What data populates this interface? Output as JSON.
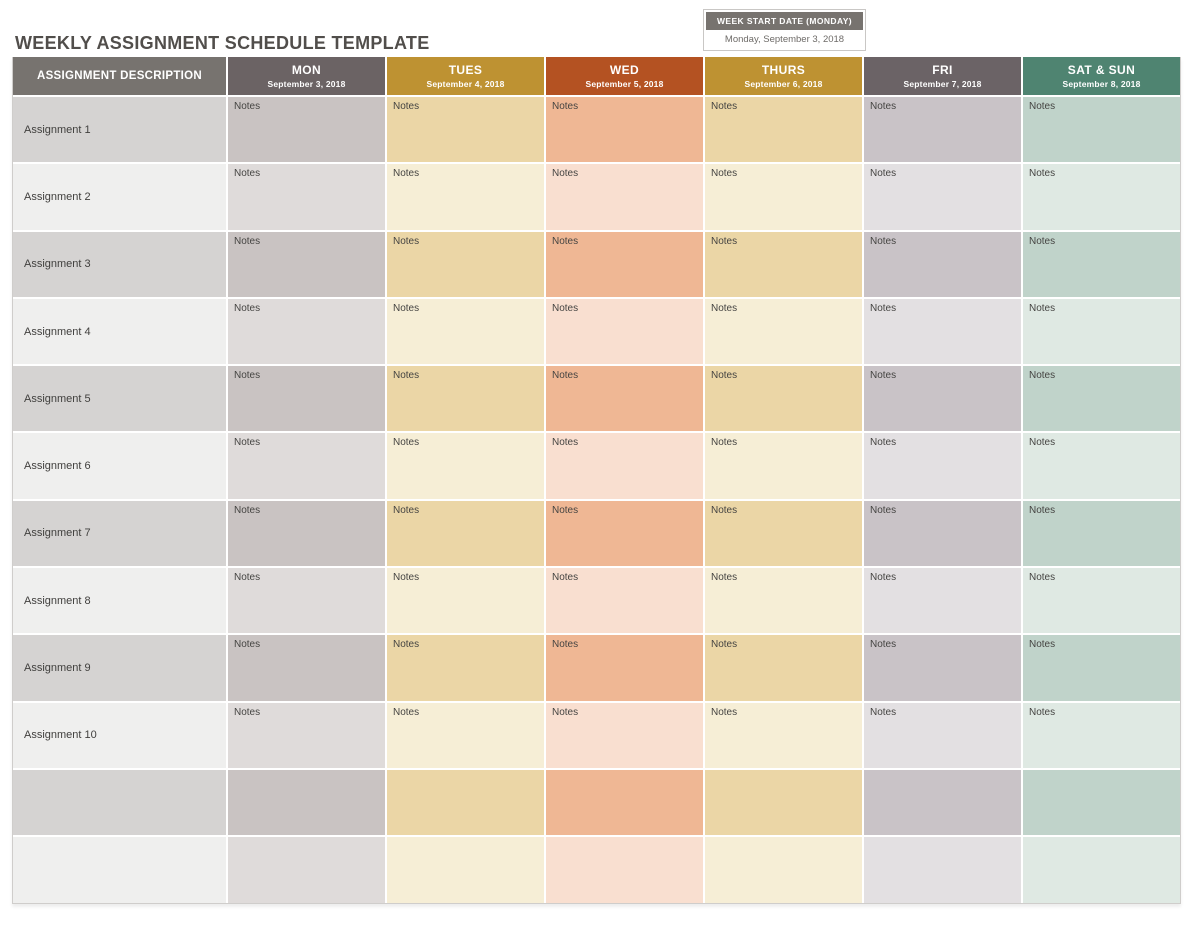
{
  "page": {
    "title": "WEEKLY ASSIGNMENT SCHEDULE TEMPLATE"
  },
  "week_start": {
    "label": "WEEK START DATE (MONDAY)",
    "value": "Monday, September 3, 2018"
  },
  "table": {
    "description_header": "ASSIGNMENT DESCRIPTION",
    "notes_label": "Notes",
    "description_colors": {
      "header": "#77736F",
      "odd": "#D5D3D2",
      "even": "#EFEFEE"
    },
    "columns": [
      {
        "day": "MON",
        "date": "September 3, 2018",
        "header_color": "#6B6364",
        "odd_color": "#C9C3C2",
        "even_color": "#DFDBDA"
      },
      {
        "day": "TUES",
        "date": "September 4, 2018",
        "header_color": "#BE9232",
        "odd_color": "#EBD6A6",
        "even_color": "#F6EED6"
      },
      {
        "day": "WED",
        "date": "September 5, 2018",
        "header_color": "#B45222",
        "odd_color": "#EFB794",
        "even_color": "#F9DFD0"
      },
      {
        "day": "THURS",
        "date": "September 6, 2018",
        "header_color": "#BE9232",
        "odd_color": "#EBD6A6",
        "even_color": "#F6EED6"
      },
      {
        "day": "FRI",
        "date": "September 7, 2018",
        "header_color": "#6B6366",
        "odd_color": "#C9C3C7",
        "even_color": "#E3E0E2"
      },
      {
        "day": "SAT & SUN",
        "date": "September 8, 2018",
        "header_color": "#4F8471",
        "odd_color": "#C0D3CA",
        "even_color": "#DFE9E3"
      }
    ],
    "rows": [
      {
        "label": "Assignment 1",
        "has_notes": true
      },
      {
        "label": "Assignment 2",
        "has_notes": true
      },
      {
        "label": "Assignment 3",
        "has_notes": true
      },
      {
        "label": "Assignment 4",
        "has_notes": true
      },
      {
        "label": "Assignment 5",
        "has_notes": true
      },
      {
        "label": "Assignment 6",
        "has_notes": true
      },
      {
        "label": "Assignment 7",
        "has_notes": true
      },
      {
        "label": "Assignment 8",
        "has_notes": true
      },
      {
        "label": "Assignment 9",
        "has_notes": true
      },
      {
        "label": "Assignment 10",
        "has_notes": true
      },
      {
        "label": "",
        "has_notes": false
      },
      {
        "label": "",
        "has_notes": false
      }
    ]
  }
}
